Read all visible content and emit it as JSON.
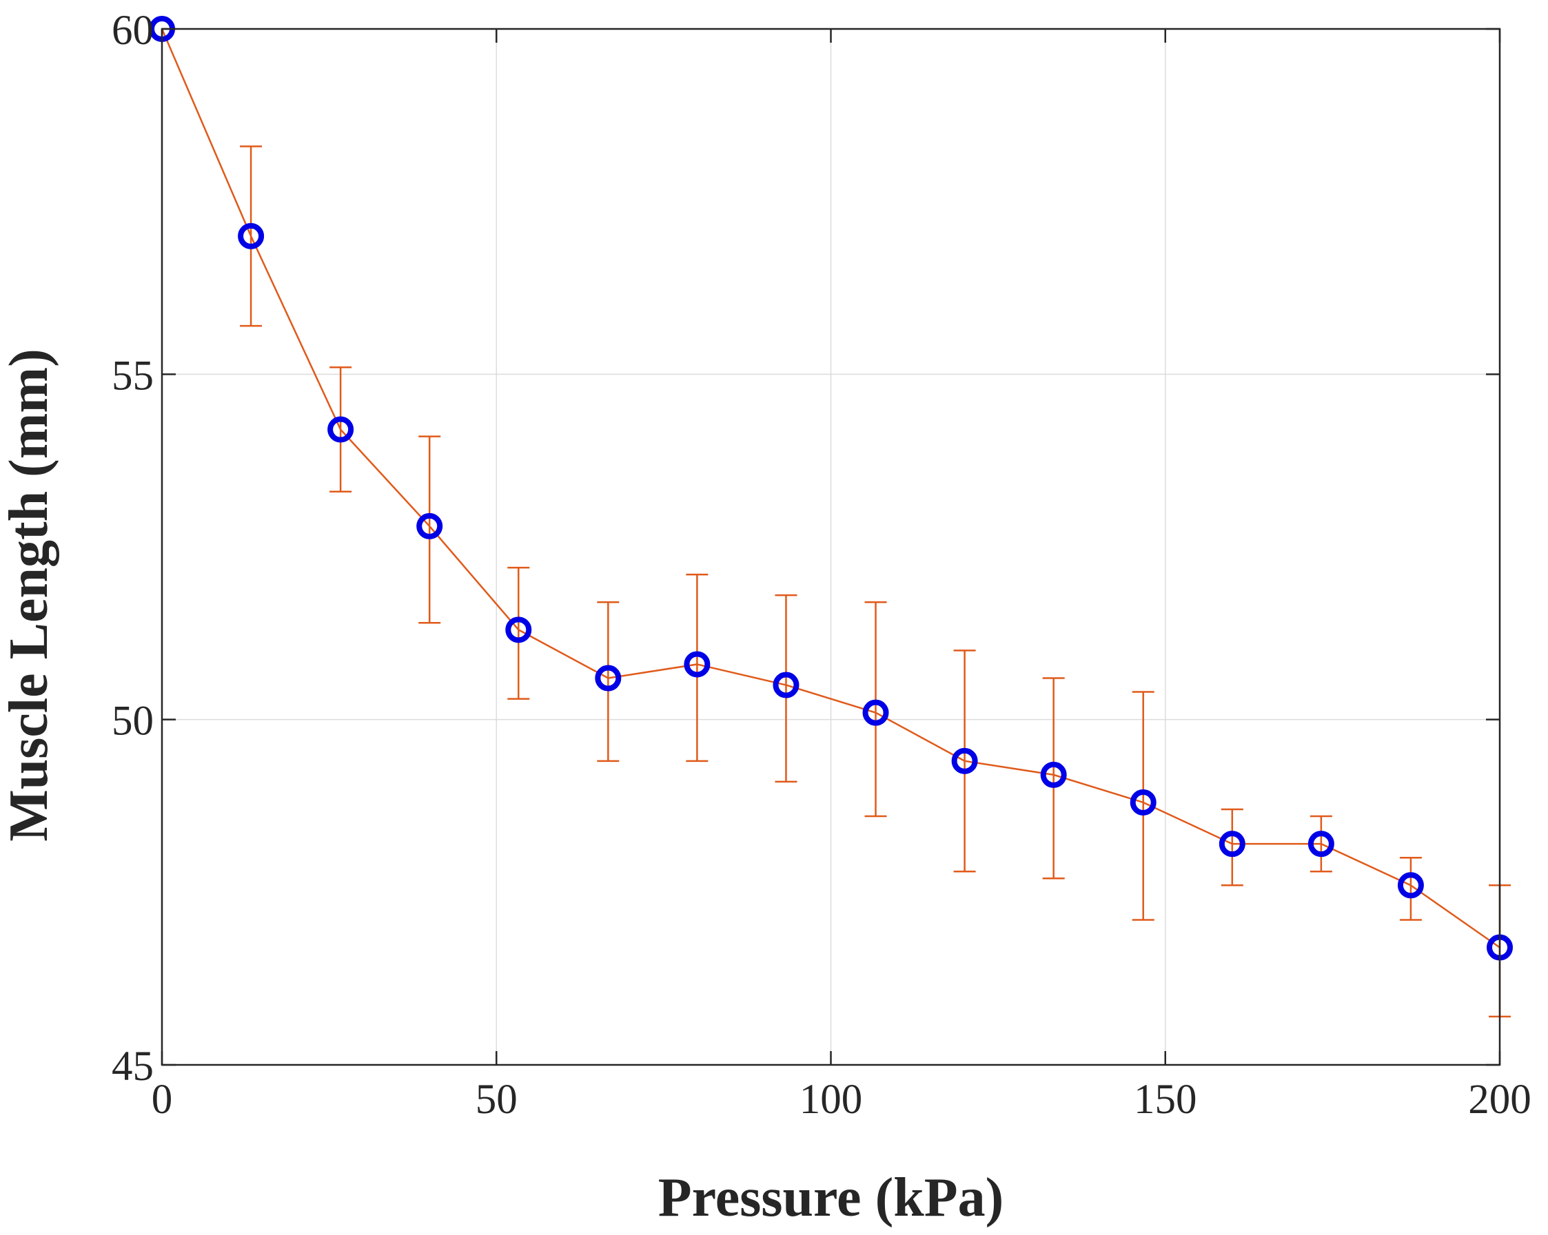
{
  "chart_data": {
    "type": "line",
    "title": "",
    "xlabel": "Pressure (kPa)",
    "ylabel": "Muscle Length (mm)",
    "xlim": [
      0,
      200
    ],
    "ylim": [
      45,
      60
    ],
    "xticks": [
      "0",
      "50",
      "100",
      "150",
      "200"
    ],
    "yticks": [
      "45",
      "50",
      "55",
      "60"
    ],
    "grid": true,
    "series": [
      {
        "name": "Muscle Length",
        "line_color": "#e05a1a",
        "marker_color": "#0000e6",
        "marker": "circle",
        "x": [
          0,
          13.3,
          26.7,
          40,
          53.3,
          66.7,
          80,
          93.3,
          106.7,
          120,
          133.3,
          146.7,
          160,
          173.3,
          186.7,
          200
        ],
        "y": [
          60,
          57,
          54.2,
          52.8,
          51.3,
          50.6,
          50.8,
          50.5,
          50.1,
          49.4,
          49.2,
          48.8,
          48.2,
          48.2,
          47.6,
          46.7
        ],
        "err_low": [
          60,
          55.7,
          53.3,
          51.4,
          50.3,
          49.4,
          49.4,
          49.1,
          48.6,
          47.8,
          47.7,
          47.1,
          47.6,
          47.8,
          47.1,
          45.7
        ],
        "err_high": [
          60,
          58.3,
          55.1,
          54.1,
          52.2,
          51.7,
          52.1,
          51.8,
          51.7,
          51.0,
          50.6,
          50.4,
          48.7,
          48.6,
          48.0,
          47.6
        ]
      }
    ]
  }
}
